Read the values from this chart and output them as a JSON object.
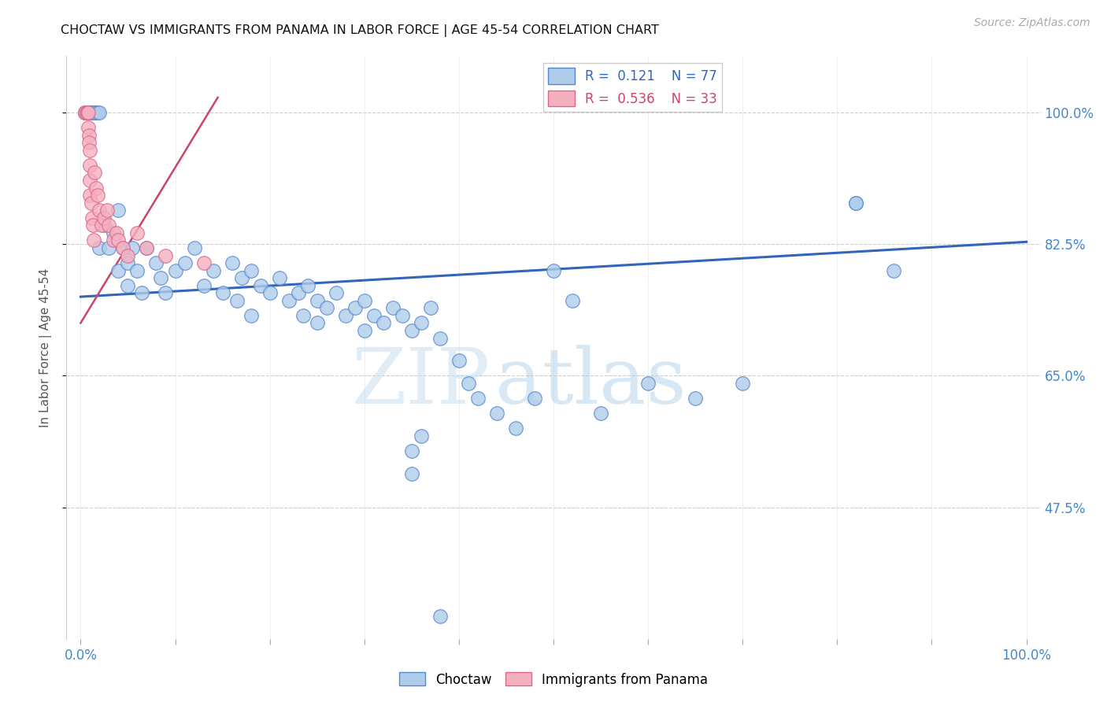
{
  "title": "CHOCTAW VS IMMIGRANTS FROM PANAMA IN LABOR FORCE | AGE 45-54 CORRELATION CHART",
  "source_text": "Source: ZipAtlas.com",
  "ylabel": "In Labor Force | Age 45-54",
  "xlim": [
    -0.015,
    1.015
  ],
  "ylim": [
    0.3,
    1.075
  ],
  "ytick_vals": [
    0.475,
    0.65,
    0.825,
    1.0
  ],
  "ytick_labels": [
    "47.5%",
    "65.0%",
    "82.5%",
    "100.0%"
  ],
  "xtick_vals": [
    0.0,
    0.1,
    0.2,
    0.3,
    0.4,
    0.5,
    0.6,
    0.7,
    0.8,
    0.9,
    1.0
  ],
  "xtick_labels": [
    "0.0%",
    "",
    "",
    "",
    "",
    "",
    "",
    "",
    "",
    "",
    "100.0%"
  ],
  "blue_R": 0.121,
  "blue_N": 77,
  "pink_R": 0.536,
  "pink_N": 33,
  "blue_color": "#b0cceb",
  "pink_color": "#f5b0c0",
  "blue_edge_color": "#5588cc",
  "pink_edge_color": "#dd6688",
  "blue_line_color": "#3366bb",
  "pink_line_color": "#cc4466",
  "legend_label_blue": "Choctaw",
  "legend_label_pink": "Immigrants from Panama",
  "watermark_zip": "ZIP",
  "watermark_atlas": "atlas",
  "title_color": "#111111",
  "axis_color": "#4488cc",
  "grid_color": "#cccccc",
  "blue_trend_x": [
    0.0,
    1.0
  ],
  "blue_trend_y": [
    0.755,
    0.828
  ],
  "pink_trend_x": [
    0.0,
    0.145
  ],
  "pink_trend_y": [
    0.72,
    1.02
  ],
  "blue_x": [
    0.005,
    0.005,
    0.007,
    0.01,
    0.01,
    0.012,
    0.015,
    0.015,
    0.018,
    0.02,
    0.02,
    0.025,
    0.03,
    0.035,
    0.04,
    0.04,
    0.045,
    0.05,
    0.05,
    0.055,
    0.06,
    0.065,
    0.07,
    0.08,
    0.085,
    0.09,
    0.1,
    0.11,
    0.12,
    0.13,
    0.14,
    0.15,
    0.16,
    0.165,
    0.17,
    0.18,
    0.18,
    0.19,
    0.2,
    0.21,
    0.22,
    0.23,
    0.235,
    0.24,
    0.25,
    0.25,
    0.26,
    0.27,
    0.28,
    0.29,
    0.3,
    0.3,
    0.31,
    0.32,
    0.33,
    0.34,
    0.35,
    0.36,
    0.37,
    0.38,
    0.4,
    0.41,
    0.42,
    0.44,
    0.46,
    0.48,
    0.5,
    0.52,
    0.55,
    0.6,
    0.65,
    0.7,
    0.82,
    0.86,
    0.35,
    0.35,
    0.36
  ],
  "blue_y": [
    1.0,
    1.0,
    1.0,
    1.0,
    1.0,
    1.0,
    1.0,
    1.0,
    1.0,
    1.0,
    0.82,
    0.85,
    0.82,
    0.84,
    0.87,
    0.79,
    0.82,
    0.8,
    0.77,
    0.82,
    0.79,
    0.76,
    0.82,
    0.8,
    0.78,
    0.76,
    0.79,
    0.8,
    0.82,
    0.77,
    0.79,
    0.76,
    0.8,
    0.75,
    0.78,
    0.79,
    0.73,
    0.77,
    0.76,
    0.78,
    0.75,
    0.76,
    0.73,
    0.77,
    0.75,
    0.72,
    0.74,
    0.76,
    0.73,
    0.74,
    0.75,
    0.71,
    0.73,
    0.72,
    0.74,
    0.73,
    0.71,
    0.72,
    0.74,
    0.7,
    0.67,
    0.64,
    0.62,
    0.6,
    0.58,
    0.62,
    0.79,
    0.75,
    0.6,
    0.64,
    0.62,
    0.64,
    0.88,
    0.79,
    0.55,
    0.52,
    0.57
  ],
  "pink_x": [
    0.005,
    0.005,
    0.006,
    0.007,
    0.008,
    0.008,
    0.009,
    0.009,
    0.01,
    0.01,
    0.01,
    0.01,
    0.011,
    0.012,
    0.013,
    0.014,
    0.015,
    0.016,
    0.018,
    0.02,
    0.022,
    0.025,
    0.028,
    0.03,
    0.035,
    0.038,
    0.04,
    0.045,
    0.05,
    0.06,
    0.07,
    0.09,
    0.13
  ],
  "pink_y": [
    1.0,
    1.0,
    1.0,
    1.0,
    1.0,
    0.98,
    0.97,
    0.96,
    0.95,
    0.93,
    0.91,
    0.89,
    0.88,
    0.86,
    0.85,
    0.83,
    0.92,
    0.9,
    0.89,
    0.87,
    0.85,
    0.86,
    0.87,
    0.85,
    0.83,
    0.84,
    0.83,
    0.82,
    0.81,
    0.84,
    0.82,
    0.81,
    0.8
  ]
}
